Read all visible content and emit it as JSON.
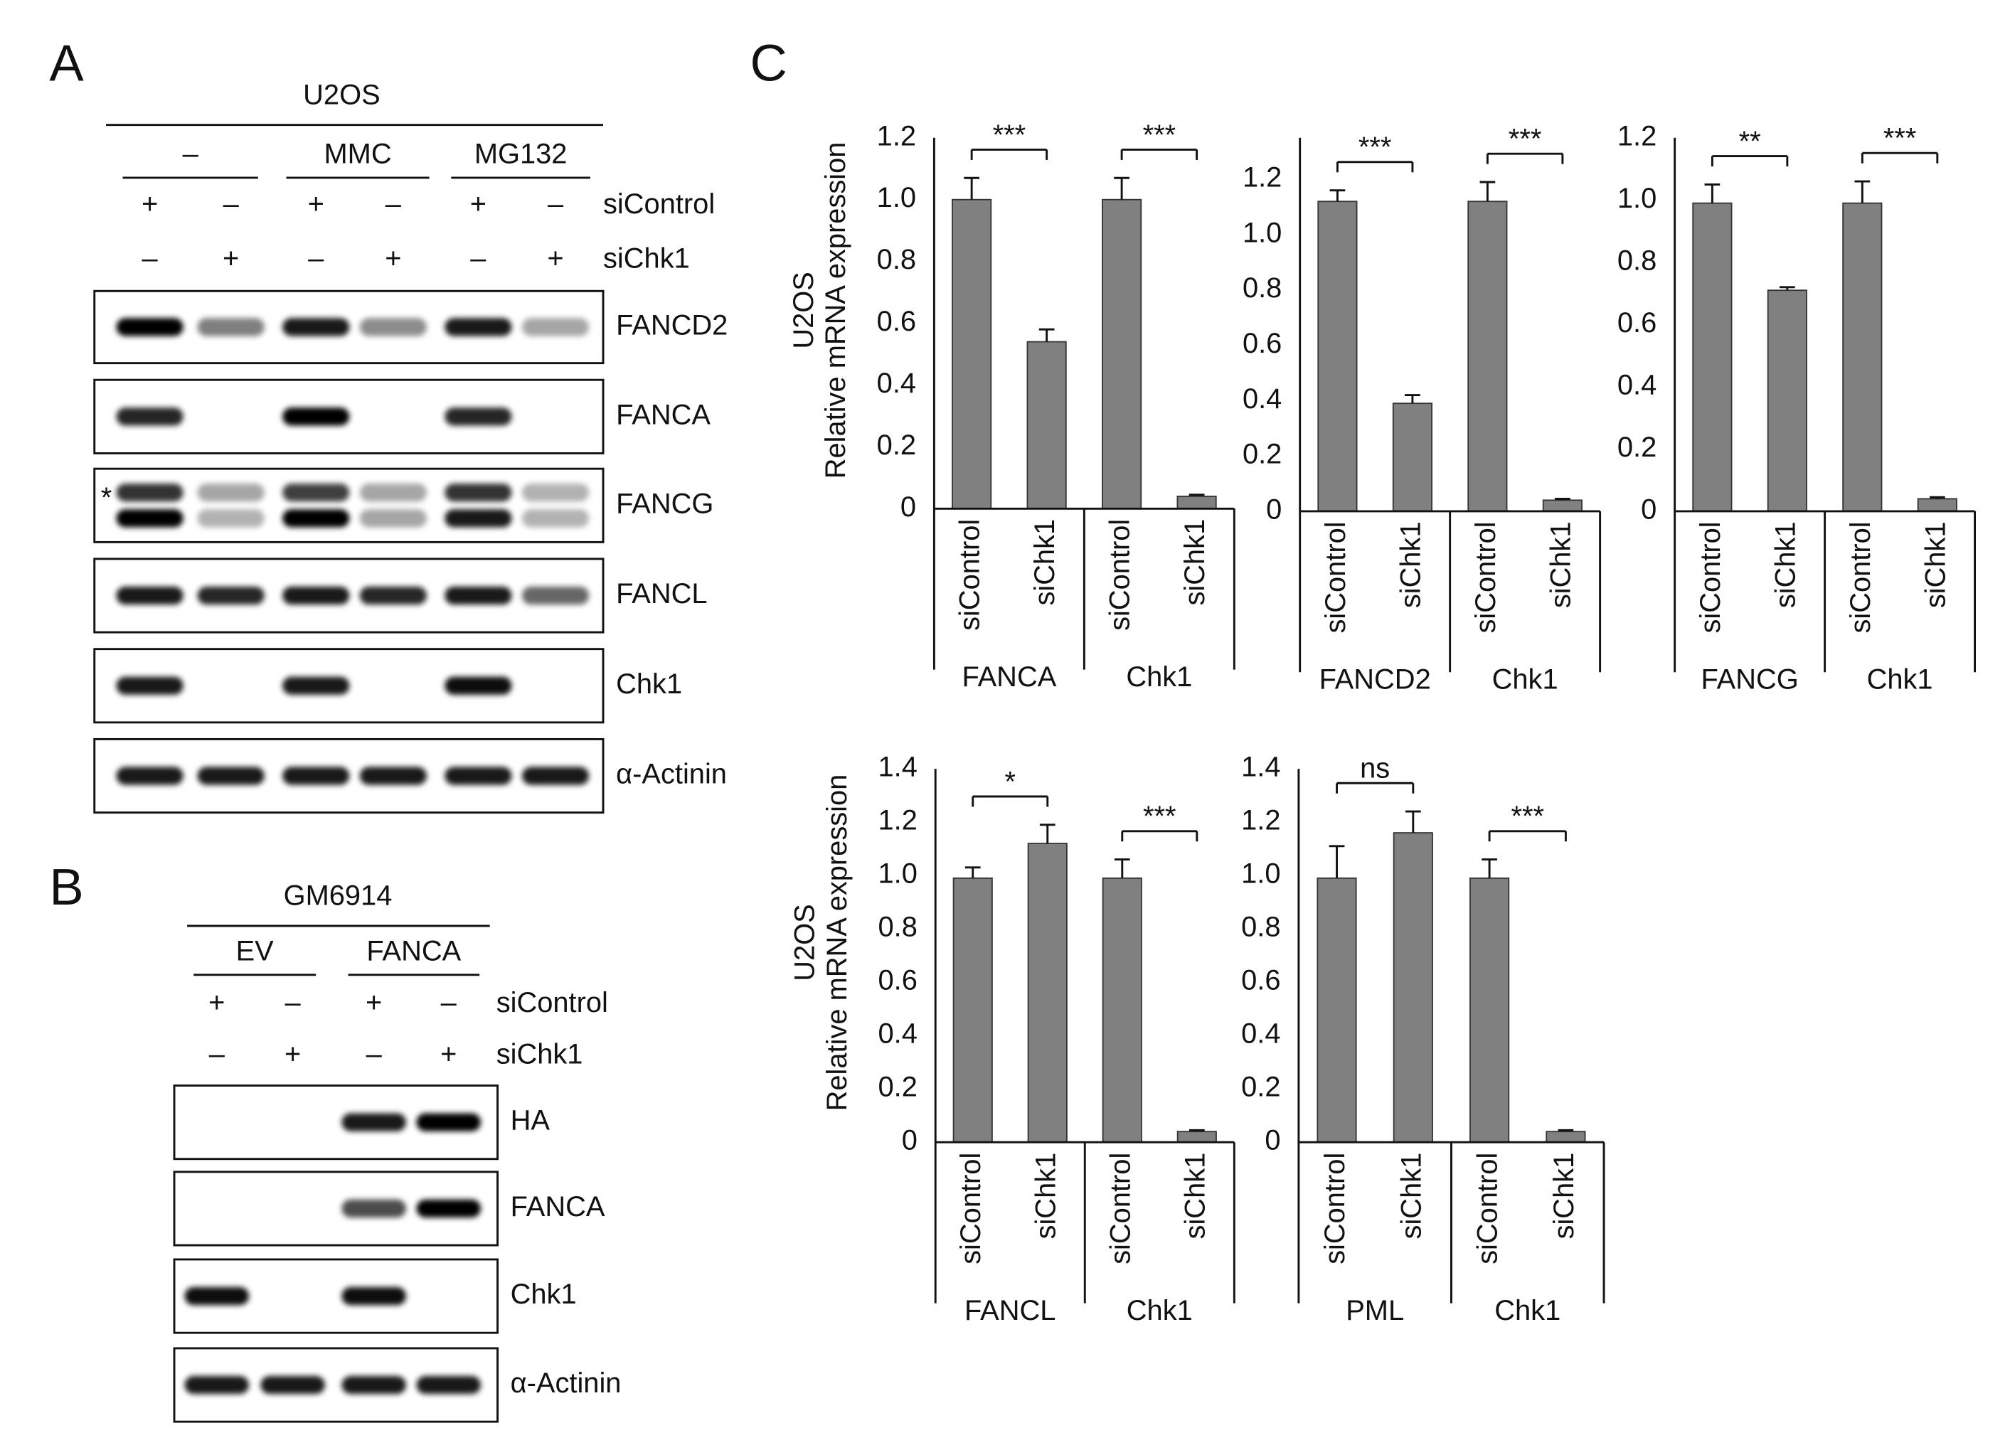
{
  "panel_labels": [
    "A",
    "B",
    "C"
  ],
  "blot_a": {
    "cell_line": "U2OS",
    "treatments": [
      "–",
      "MMC",
      "MG132"
    ],
    "conditions": [
      {
        "name": "siControl",
        "signs": [
          "+",
          "–",
          "+",
          "–",
          "+",
          "–"
        ]
      },
      {
        "name": "siChk1",
        "signs": [
          "–",
          "+",
          "–",
          "+",
          "–",
          "+"
        ]
      }
    ],
    "proteins": [
      "FANCD2",
      "FANCA",
      "FANCG",
      "FANCL",
      "Chk1",
      "α-Actinin"
    ],
    "marker": "*"
  },
  "blot_b": {
    "cell_line": "GM6914",
    "constructs": [
      "EV",
      "FANCA"
    ],
    "conditions": [
      {
        "name": "siControl",
        "signs": [
          "+",
          "–",
          "+",
          "–"
        ]
      },
      {
        "name": "siChk1",
        "signs": [
          "–",
          "+",
          "–",
          "+"
        ]
      }
    ],
    "proteins": [
      "HA",
      "FANCA",
      "Chk1",
      "α-Actinin"
    ]
  },
  "chart_data": [
    {
      "type": "bar",
      "y_label_lines": [
        "U2OS",
        "Relative mRNA expression"
      ],
      "color": "#808080",
      "groups": [
        "FANCA",
        "Chk1"
      ],
      "categories": [
        "siControl",
        "siChk1",
        "siControl",
        "siChk1"
      ],
      "values": [
        1.0,
        0.54,
        1.0,
        0.04
      ],
      "errors": [
        0.07,
        0.04,
        0.07,
        0.005
      ],
      "significance": [
        "***",
        "***"
      ],
      "ylim": [
        0,
        1.2
      ],
      "yticks": [
        0,
        0.2,
        0.4,
        0.6,
        0.8,
        {
          "value": 1,
          "label": "1.0"
        },
        1.2
      ]
    },
    {
      "type": "bar",
      "color": "#808080",
      "groups": [
        "FANCD2",
        "Chk1"
      ],
      "categories": [
        "siControl",
        "siChk1",
        "siControl",
        "siChk1"
      ],
      "values": [
        1.12,
        0.39,
        1.12,
        0.04
      ],
      "errors": [
        0.04,
        0.03,
        0.07,
        0.005
      ],
      "significance": [
        "***",
        "***"
      ],
      "ylim": [
        0,
        1.35
      ],
      "yticks": [
        0,
        0.2,
        0.4,
        0.6,
        0.8,
        {
          "value": 1,
          "label": "1.0"
        },
        1.2
      ]
    },
    {
      "type": "bar",
      "color": "#808080",
      "groups": [
        "FANCG",
        "Chk1"
      ],
      "categories": [
        "siControl",
        "siChk1",
        "siControl",
        "siChk1"
      ],
      "values": [
        0.99,
        0.71,
        0.99,
        0.04
      ],
      "errors": [
        0.06,
        0.01,
        0.07,
        0.005
      ],
      "significance": [
        "**",
        "***"
      ],
      "ylim": [
        0,
        1.2
      ],
      "yticks": [
        0,
        0.2,
        0.4,
        0.6,
        0.8,
        {
          "value": 1,
          "label": "1.0"
        },
        1.2
      ]
    },
    {
      "type": "bar",
      "y_label_lines": [
        "U2OS",
        "Relative mRNA expression"
      ],
      "color": "#808080",
      "groups": [
        "FANCL",
        "Chk1"
      ],
      "categories": [
        "siControl",
        "siChk1",
        "siControl",
        "siChk1"
      ],
      "values": [
        0.99,
        1.12,
        0.99,
        0.04
      ],
      "errors": [
        0.04,
        0.07,
        0.07,
        0.005
      ],
      "significance": [
        "*",
        "***"
      ],
      "ylim": [
        0,
        1.4
      ],
      "yticks": [
        0,
        0.2,
        0.4,
        0.6,
        0.8,
        {
          "value": 1,
          "label": "1.0"
        },
        1.2,
        1.4
      ]
    },
    {
      "type": "bar",
      "color": "#808080",
      "groups": [
        "PML",
        "Chk1"
      ],
      "categories": [
        "siControl",
        "siChk1",
        "siControl",
        "siChk1"
      ],
      "values": [
        0.99,
        1.16,
        0.99,
        0.04
      ],
      "errors": [
        0.12,
        0.08,
        0.07,
        0.005
      ],
      "significance": [
        "ns",
        "***"
      ],
      "ylim": [
        0,
        1.4
      ],
      "yticks": [
        0,
        0.2,
        0.4,
        0.6,
        0.8,
        {
          "value": 1,
          "label": "1.0"
        },
        1.2,
        1.4
      ]
    }
  ]
}
